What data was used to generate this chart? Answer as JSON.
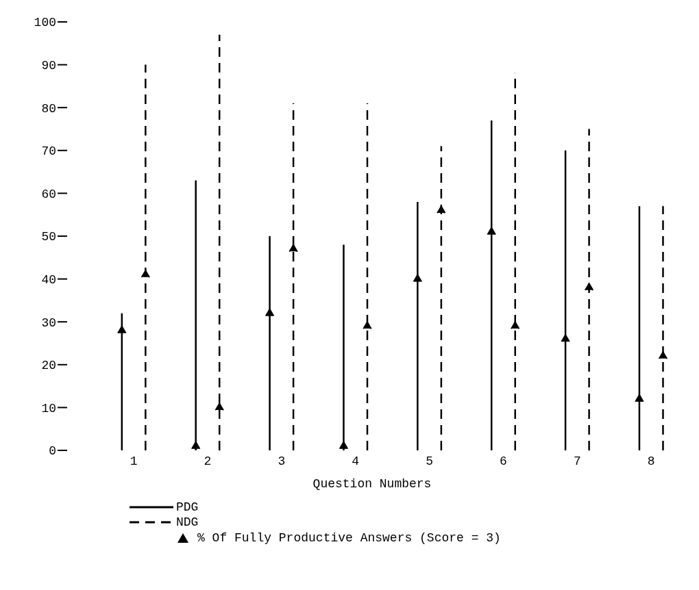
{
  "chart_data": {
    "type": "scatter",
    "xlabel": "Question Numbers",
    "categories": [
      "1",
      "2",
      "3",
      "4",
      "5",
      "6",
      "7",
      "8"
    ],
    "ylim": [
      0,
      100
    ],
    "yticks": [
      0,
      10,
      20,
      30,
      40,
      50,
      60,
      70,
      80,
      90,
      100
    ],
    "grid": false,
    "legend": "bottom",
    "marker": "triangle",
    "series": [
      {
        "name": "PDG",
        "color": "#000000",
        "line_style": "solid",
        "values": [
          28,
          1,
          32,
          1,
          40,
          51,
          26,
          12
        ],
        "errors": [
          [
            0,
            32
          ],
          [
            0,
            63
          ],
          [
            0,
            50
          ],
          [
            0,
            48
          ],
          [
            0,
            58
          ],
          [
            0,
            77
          ],
          [
            0,
            70
          ],
          [
            0,
            57
          ]
        ]
      },
      {
        "name": "NDG",
        "color": "#000000",
        "line_style": "dashed",
        "values": [
          41,
          10,
          47,
          29,
          56,
          29,
          38,
          22
        ],
        "errors": [
          [
            0,
            90
          ],
          [
            0,
            97
          ],
          [
            0,
            81
          ],
          [
            0,
            81
          ],
          [
            0,
            71
          ],
          [
            0,
            88
          ],
          [
            0,
            75
          ],
          [
            0,
            57
          ]
        ]
      }
    ],
    "annotations": [
      "% Of Fully Productive Answers (Score = 3)"
    ]
  }
}
